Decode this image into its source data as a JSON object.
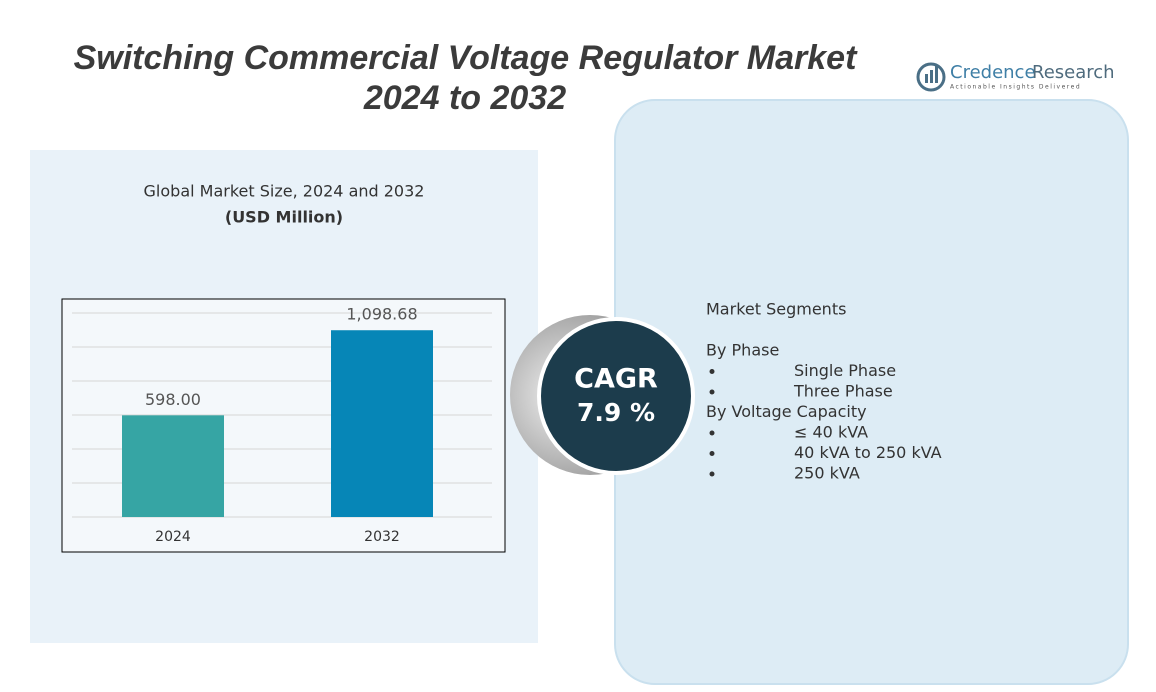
{
  "header": {
    "title_line1": "Switching Commercial Voltage Regulator Market",
    "title_line2": "2024 to 2032"
  },
  "logo": {
    "name_part1": "Credence",
    "name_part2": "Research",
    "tagline": "Actionable Insights Delivered"
  },
  "chart_data": {
    "type": "bar",
    "title": "Global Market Size,  2024 and 2032",
    "subtitle": "(USD Million)",
    "categories": [
      "2024",
      "2032"
    ],
    "values": [
      598.0,
      1098.68
    ],
    "value_labels": [
      "598.00",
      "1,098.68"
    ],
    "colors": [
      "#36a5a4",
      "#0686b7"
    ],
    "ylim": [
      0,
      1200
    ],
    "yticks": [
      0,
      200,
      400,
      600,
      800,
      1000,
      1200
    ],
    "grid": true
  },
  "cagr": {
    "label": "CAGR",
    "value": "7.9 %"
  },
  "segments": {
    "heading": "Market Segments",
    "groups": [
      {
        "name": "By Phase",
        "items": [
          "Single Phase",
          "Three Phase"
        ]
      },
      {
        "name": "By Voltage Capacity",
        "items": [
          "≤ 40 kVA",
          "40 kVA to 250 kVA",
          "250 kVA"
        ]
      }
    ]
  }
}
